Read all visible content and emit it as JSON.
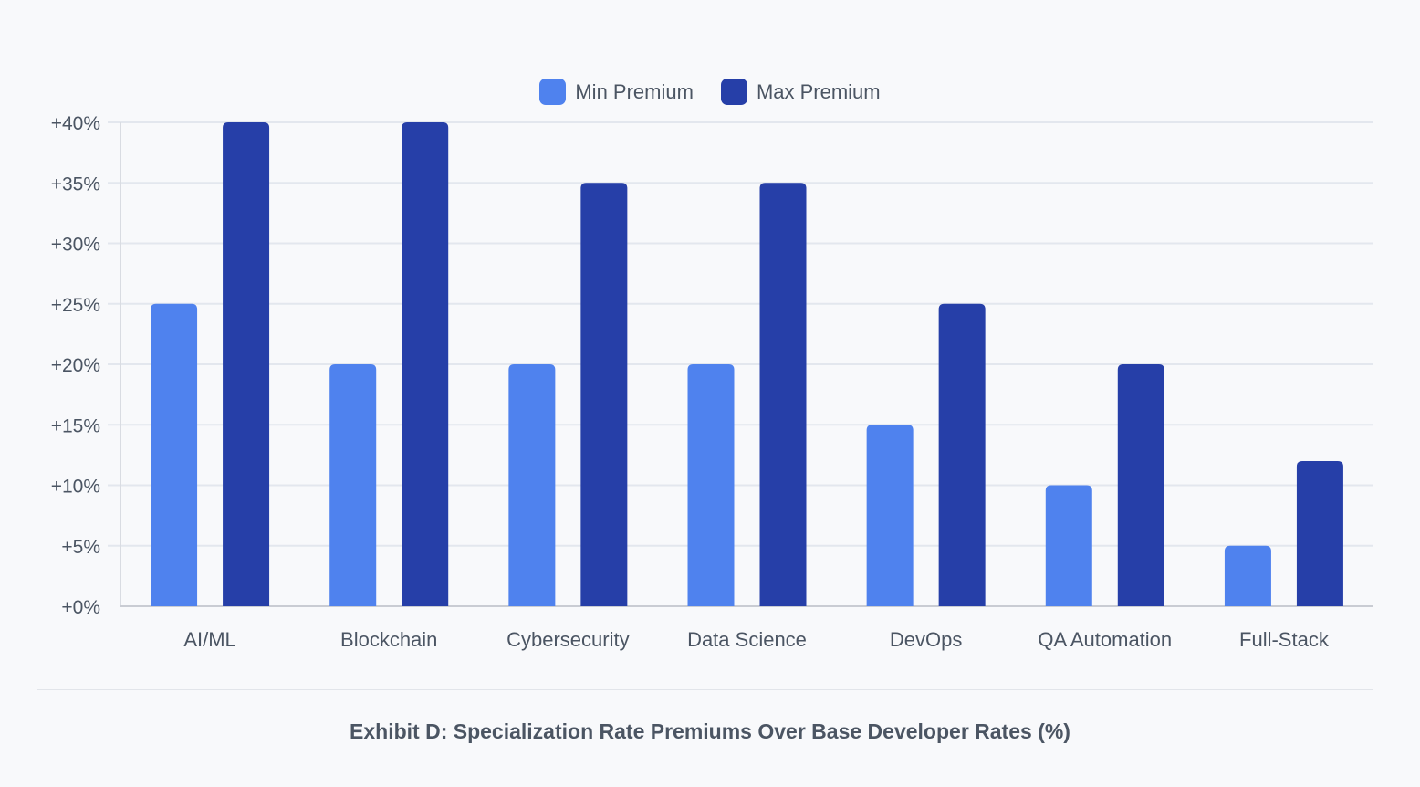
{
  "chart_data": {
    "type": "bar",
    "title": "",
    "caption": "Exhibit D: Specialization Rate Premiums Over Base Developer Rates (%)",
    "xlabel": "",
    "ylabel": "",
    "categories": [
      "AI/ML",
      "Blockchain",
      "Cybersecurity",
      "Data Science",
      "DevOps",
      "QA Automation",
      "Full-Stack"
    ],
    "series": [
      {
        "name": "Min Premium",
        "color": "#4f82ee",
        "values": [
          25,
          20,
          20,
          20,
          15,
          10,
          5
        ]
      },
      {
        "name": "Max Premium",
        "color": "#263fa8",
        "values": [
          40,
          40,
          35,
          35,
          25,
          20,
          12
        ]
      }
    ],
    "ylim": [
      0,
      40
    ],
    "yticks": [
      "+0%",
      "+5%",
      "+10%",
      "+15%",
      "+20%",
      "+25%",
      "+30%",
      "+35%",
      "+40%"
    ],
    "ytick_values": [
      0,
      5,
      10,
      15,
      20,
      25,
      30,
      35,
      40
    ],
    "grid": true,
    "legend_position": "top-center"
  }
}
